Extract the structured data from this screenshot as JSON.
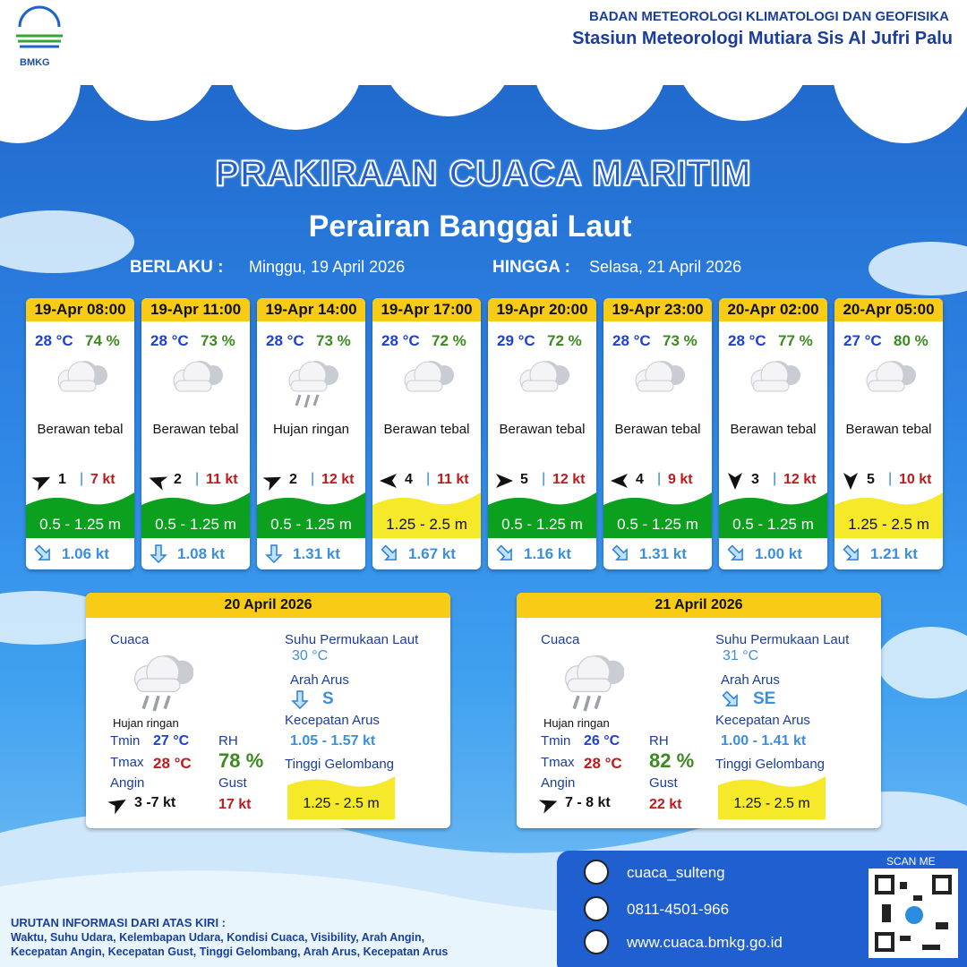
{
  "header": {
    "logo_text": "BMKG",
    "agency": "BADAN METEOROLOGI KLIMATOLOGI DAN GEOFISIKA",
    "station": "Stasiun Meteorologi Mutiara Sis Al Jufri Palu"
  },
  "title": "PRAKIRAAN CUACA MARITIM",
  "subtitle": "Perairan Banggai Laut",
  "validity": {
    "from_label": "BERLAKU :",
    "from": "Minggu, 19 April 2026",
    "to_label": "HINGGA :",
    "to": "Selasa, 21 April 2026"
  },
  "forecasts": [
    {
      "time": "19-Apr 08:00",
      "temp": "28 °C",
      "rh": "74 %",
      "weather": "Berawan tebal",
      "wind": "1",
      "wind_speed": "7 kt",
      "wave": "0.5 - 1.25 m",
      "wave_color": "#0ba01e",
      "current": "1.06 kt"
    },
    {
      "time": "19-Apr 11:00",
      "temp": "28 °C",
      "rh": "73 %",
      "weather": "Berawan tebal",
      "wind": "2",
      "wind_speed": "11 kt",
      "wave": "0.5 - 1.25 m",
      "wave_color": "#0ba01e",
      "current": "1.08 kt"
    },
    {
      "time": "19-Apr 14:00",
      "temp": "28 °C",
      "rh": "73 %",
      "weather": "Hujan ringan",
      "wind": "2",
      "wind_speed": "12 kt",
      "wave": "0.5 - 1.25 m",
      "wave_color": "#0ba01e",
      "current": "1.31 kt"
    },
    {
      "time": "19-Apr 17:00",
      "temp": "28 °C",
      "rh": "72 %",
      "weather": "Berawan tebal",
      "wind": "4",
      "wind_speed": "11 kt",
      "wave": "1.25 - 2.5 m",
      "wave_color": "#f5e92a",
      "current": "1.67 kt"
    },
    {
      "time": "19-Apr 20:00",
      "temp": "29 °C",
      "rh": "72 %",
      "weather": "Berawan tebal",
      "wind": "5",
      "wind_speed": "12 kt",
      "wave": "0.5 - 1.25 m",
      "wave_color": "#0ba01e",
      "current": "1.16 kt"
    },
    {
      "time": "19-Apr 23:00",
      "temp": "28 °C",
      "rh": "73 %",
      "weather": "Berawan tebal",
      "wind": "4",
      "wind_speed": "9 kt",
      "wave": "0.5 - 1.25 m",
      "wave_color": "#0ba01e",
      "current": "1.31 kt"
    },
    {
      "time": "20-Apr 02:00",
      "temp": "28 °C",
      "rh": "77 %",
      "weather": "Berawan tebal",
      "wind": "3",
      "wind_speed": "12 kt",
      "wave": "0.5 - 1.25 m",
      "wave_color": "#0ba01e",
      "current": "1.00 kt"
    },
    {
      "time": "20-Apr 05:00",
      "temp": "27 °C",
      "rh": "80 %",
      "weather": "Berawan tebal",
      "wind": "5",
      "wind_speed": "10 kt",
      "wave": "1.25 - 2.5 m",
      "wave_color": "#f5e92a",
      "current": "1.21 kt"
    }
  ],
  "daily": [
    {
      "date": "20 April 2026",
      "weather_label": "Cuaca",
      "weather": "Hujan ringan",
      "tmin_label": "Tmin",
      "tmin": "27 °C",
      "tmax_label": "Tmax",
      "tmax": "28 °C",
      "wind_label": "Angin",
      "wind": "3 -7 kt",
      "rh_label": "RH",
      "rh": "78 %",
      "gust_label": "Gust",
      "gust": "17 kt",
      "sst_label": "Suhu Permukaan Laut",
      "sst": "30 °C",
      "current_dir_label": "Arah Arus",
      "current_dir": "S",
      "current_speed_label": "Kecepatan Arus",
      "current_speed": "1.05 - 1.57 kt",
      "wave_label": "Tinggi Gelombang",
      "wave": "1.25 - 2.5 m"
    },
    {
      "date": "21 April 2026",
      "weather_label": "Cuaca",
      "weather": "Hujan ringan",
      "tmin_label": "Tmin",
      "tmin": "26 °C",
      "tmax_label": "Tmax",
      "tmax": "28 °C",
      "wind_label": "Angin",
      "wind": "7 - 8 kt",
      "rh_label": "RH",
      "rh": "82 %",
      "gust_label": "Gust",
      "gust": "22 kt",
      "sst_label": "Suhu Permukaan Laut",
      "sst": "31 °C",
      "current_dir_label": "Arah Arus",
      "current_dir": "SE",
      "current_speed_label": "Kecepatan Arus",
      "current_speed": "1.00 - 1.41 kt",
      "wave_label": "Tinggi Gelombang",
      "wave": "1.25 - 2.5 m"
    }
  ],
  "footer": {
    "note_title": "URUTAN INFORMASI DARI ATAS KIRI :",
    "note_lines": [
      "Waktu, Suhu Udara, Kelembapan Udara, Kondisi Cuaca, Visibility, Arah Angin,",
      "Kecepatan Angin, Kecepatan Gust, Tinggi Gelombang, Arah Arus, Kecepatan Arus"
    ],
    "instagram": "cuaca_sulteng",
    "phone": "0811-4501-966",
    "website": "www.cuaca.bmkg.go.id",
    "scan": "SCAN ME"
  }
}
